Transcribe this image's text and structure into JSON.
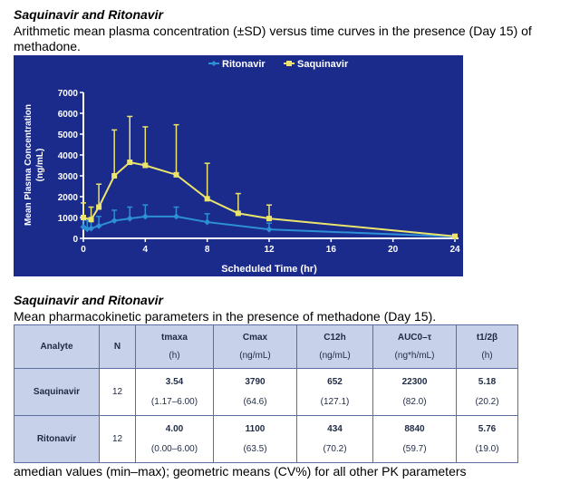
{
  "section1": {
    "heading": "Saquinavir and Ritonavir",
    "caption": "Arithmetic mean plasma concentration (±SD) versus time curves in the presence (Day 15) of methadone."
  },
  "chart_data": {
    "type": "line",
    "xlabel": "Scheduled Time (hr)",
    "ylabel_line1": "Mean Plasma Concentration",
    "ylabel_line2": "(ng/mL)",
    "xlim": [
      0,
      24
    ],
    "ylim": [
      0,
      7000
    ],
    "xticks": [
      0,
      4,
      8,
      12,
      16,
      20,
      24
    ],
    "yticks": [
      0,
      1000,
      2000,
      3000,
      4000,
      5000,
      6000,
      7000
    ],
    "grid": false,
    "legend_position": "top-center",
    "background": "#1a2b8c",
    "series": [
      {
        "name": "Ritonavir",
        "color": "#2d8fd6",
        "x": [
          0,
          0.25,
          0.5,
          1,
          2,
          3,
          4,
          6,
          8,
          12,
          24
        ],
        "y": [
          550,
          450,
          480,
          600,
          850,
          950,
          1050,
          1050,
          780,
          430,
          80
        ],
        "sd": [
          400,
          420,
          450,
          450,
          500,
          550,
          550,
          450,
          400,
          300,
          100
        ]
      },
      {
        "name": "Saquinavir",
        "color": "#ece46c",
        "x": [
          0,
          0.5,
          1,
          2,
          3,
          4,
          6,
          8,
          10,
          12,
          24
        ],
        "y": [
          1000,
          900,
          1500,
          3000,
          3650,
          3500,
          3050,
          1900,
          1200,
          950,
          100
        ],
        "sd": [
          700,
          600,
          1100,
          2200,
          2200,
          1850,
          2400,
          1700,
          950,
          650,
          80
        ]
      }
    ]
  },
  "section2": {
    "heading": "Saquinavir and Ritonavir",
    "caption": "Mean pharmacokinetic parameters in the presence of methadone (Day 15)."
  },
  "table": {
    "headers": [
      {
        "main": "Analyte",
        "unit": ""
      },
      {
        "main": "N",
        "unit": ""
      },
      {
        "main": "tmaxa",
        "unit": "(h)"
      },
      {
        "main": "Cmax",
        "unit": "(ng/mL)"
      },
      {
        "main": "C12h",
        "unit": "(ng/mL)"
      },
      {
        "main": "AUC0–τ",
        "unit": "(ng*h/mL)"
      },
      {
        "main": "t1/2β",
        "unit": "(h)"
      }
    ],
    "rows": [
      {
        "analyte": "Saquinavir",
        "n": "12",
        "tmax": [
          "3.54",
          "(1.17–6.00)"
        ],
        "cmax": [
          "3790",
          "(64.6)"
        ],
        "c12h": [
          "652",
          "(127.1)"
        ],
        "auc": [
          "22300",
          "(82.0)"
        ],
        "thalf": [
          "5.18",
          "(20.2)"
        ]
      },
      {
        "analyte": "Ritonavir",
        "n": "12",
        "tmax": [
          "4.00",
          "(0.00–6.00)"
        ],
        "cmax": [
          "1100",
          "(63.5)"
        ],
        "c12h": [
          "434",
          "(70.2)"
        ],
        "auc": [
          "8840",
          "(59.7)"
        ],
        "thalf": [
          "5.76",
          "(19.0)"
        ]
      }
    ]
  },
  "footnote": "amedian values (min–max); geometric means (CV%) for all other PK parameters"
}
